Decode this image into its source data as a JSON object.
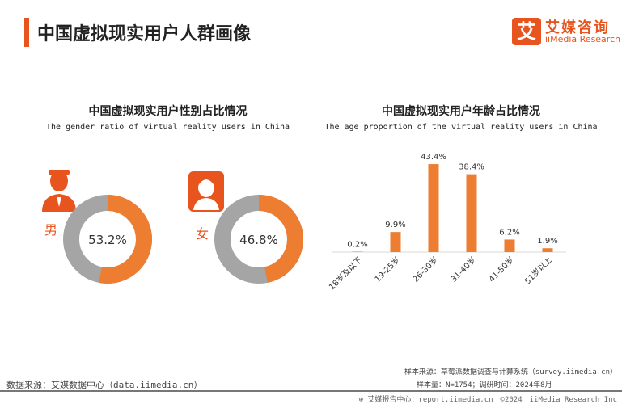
{
  "header": {
    "title": "中国虚拟现实用户人群画像",
    "logo_mark": "艾",
    "logo_cn": "艾媒咨询",
    "logo_en": "iiMedia Research"
  },
  "colors": {
    "accent": "#ed7d31",
    "gray": "#a5a5a5",
    "brand": "#e8541e"
  },
  "chart_data": [
    {
      "type": "pie",
      "title": "中国虚拟现实用户性别占比情况",
      "subtitle": "The gender ratio of virtual reality users in China",
      "donuts": [
        {
          "label": "男",
          "value": 53.2,
          "value_label": "53.2%",
          "icon": "male-user-icon"
        },
        {
          "label": "女",
          "value": 46.8,
          "value_label": "46.8%",
          "icon": "female-user-icon"
        }
      ]
    },
    {
      "type": "bar",
      "title": "中国虚拟现实用户年龄占比情况",
      "subtitle": "The age proportion of the virtual reality users in China",
      "categories": [
        "18岁及以下",
        "19-25岁",
        "26-30岁",
        "31-40岁",
        "41-50岁",
        "51岁以上"
      ],
      "values": [
        0.2,
        9.9,
        43.4,
        38.4,
        6.2,
        1.9
      ],
      "data_labels": [
        "0.2%",
        "9.9%",
        "43.4%",
        "38.4%",
        "6.2%",
        "1.9%"
      ]
    }
  ],
  "footer": {
    "source": "数据来源：艾媒数据中心（data.iimedia.cn）",
    "sample_source": "样本来源：草莓派数据调查与计算系统（survey.iimedia.cn）",
    "sample_size": "样本量：N=1754；调研时间：2024年8月",
    "report": "艾媒报告中心：report.iimedia.cn　©2024　iiMedia Research Inc"
  }
}
